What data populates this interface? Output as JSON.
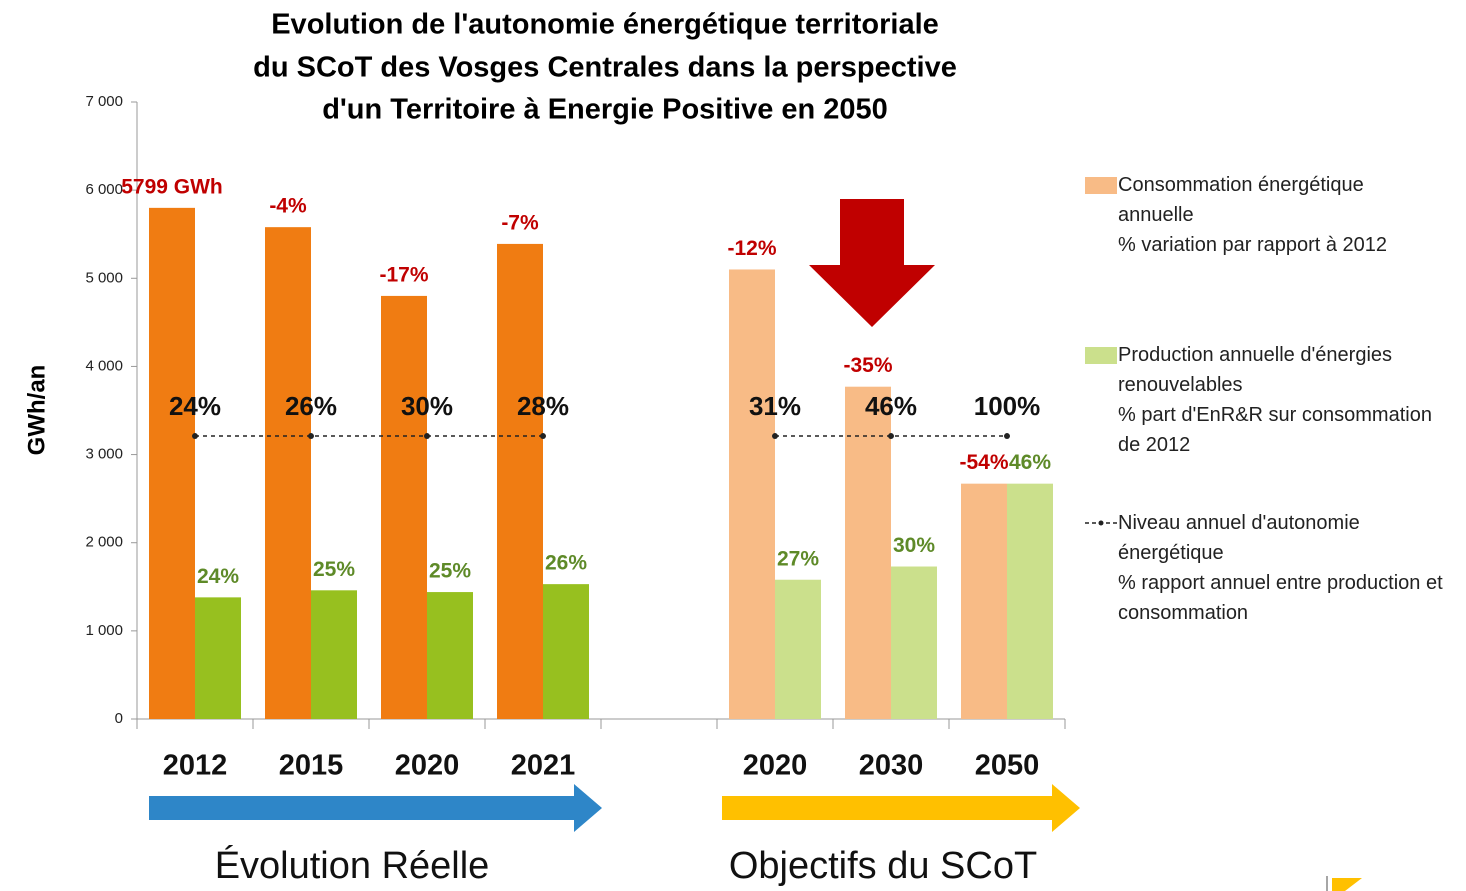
{
  "chart_data": {
    "type": "bar",
    "title": [
      "Evolution de l'autonomie énergétique territoriale",
      "du SCoT des Vosges Centrales dans la perspective",
      "d'un Territoire à Energie Positive en 2050"
    ],
    "y_label": "GWh/an",
    "categories": [
      "2012",
      "2015",
      "2020",
      "2021",
      null,
      "2020",
      "2030",
      "2050"
    ],
    "ylim": [
      0,
      7000
    ],
    "yticks": [
      0,
      {
        "value": 1000,
        "label": "1 000"
      },
      {
        "value": 2000,
        "label": "2 000"
      },
      {
        "value": 3000,
        "label": "3 000"
      },
      {
        "value": 4000,
        "label": "4 000"
      },
      {
        "value": 5000,
        "label": "5 000"
      },
      {
        "value": 6000,
        "label": "6 000"
      },
      {
        "value": 7000,
        "label": "7 000"
      }
    ],
    "series": [
      {
        "name": "Consommation énergétique annuelle",
        "description": "% variation par rapport à 2012",
        "type": "bar",
        "color": "#f8bb86",
        "colors": [
          "#f07c12",
          "#f07c12",
          "#f07c12",
          "#f07c12",
          null,
          "#f8bb86",
          "#f8bb86",
          "#f8bb86"
        ],
        "values": [
          5799,
          5580,
          4800,
          5390,
          null,
          5100,
          3770,
          2670
        ],
        "annotations": [
          "5799 GWh",
          "-4%",
          "-17%",
          "-7%",
          null,
          "-12%",
          "-35%",
          "-54%"
        ],
        "annotation_color": "#c00000"
      },
      {
        "name": "Production annuelle d'énergies renouvelables",
        "description": "% part d'EnR&R sur consommation de 2012",
        "type": "bar",
        "color": "#cbe08c",
        "colors": [
          "#97c01f",
          "#97c01f",
          "#97c01f",
          "#97c01f",
          null,
          "#cbe08c",
          "#cbe08c",
          "#cbe08c"
        ],
        "values": [
          1380,
          1460,
          1440,
          1530,
          null,
          1580,
          1730,
          2670
        ],
        "annotations": [
          "24%",
          "25%",
          "25%",
          "26%",
          null,
          "27%",
          "30%",
          "46%"
        ],
        "annotation_color": "#5e8a28"
      },
      {
        "name": "Niveau annuel d'autonomie énergétique",
        "description": "% rapport annuel entre production et consommation",
        "type": "line",
        "color": "#222222",
        "values": [
          3210,
          3210,
          3210,
          3210,
          null,
          3210,
          3210,
          3210
        ],
        "annotations": [
          "24%",
          "26%",
          "30%",
          "28%",
          null,
          "31%",
          "46%",
          "100%"
        ],
        "annotation_color": "#111111"
      }
    ],
    "groups": [
      {
        "label": "Évolution Réelle",
        "color": "#2e86c8"
      },
      {
        "label": "Objectifs du SCoT",
        "color": "#ffc000"
      }
    ]
  }
}
